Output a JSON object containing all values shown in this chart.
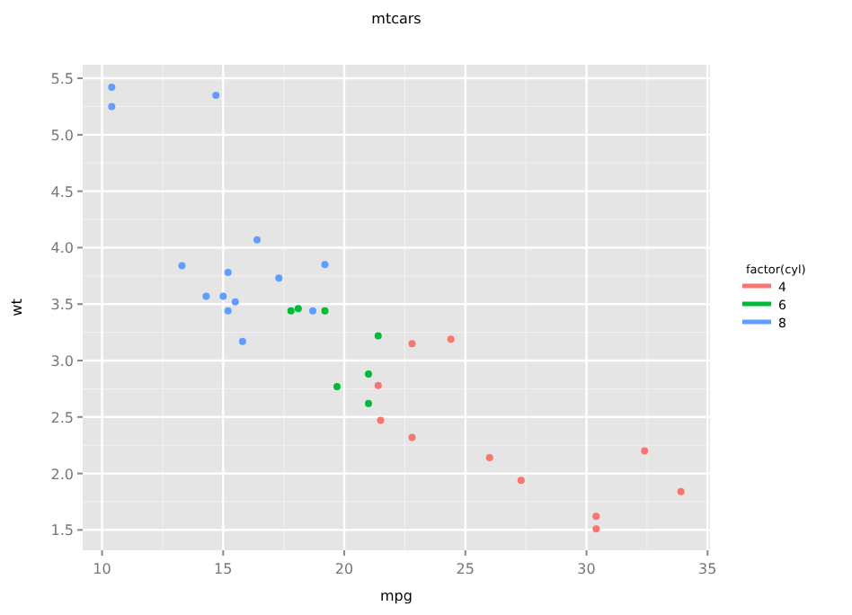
{
  "chart_data": {
    "type": "scatter",
    "title": "mtcars",
    "xlabel": "mpg",
    "ylabel": "wt",
    "legend_title": "factor(cyl)",
    "legend": "right",
    "grid": true,
    "marker": "circle",
    "xlim": [
      9.2,
      35.1
    ],
    "ylim": [
      1.32,
      5.62
    ],
    "xticks": [
      10,
      15,
      20,
      25,
      30,
      35
    ],
    "yticks": [
      {
        "value": 1.5,
        "label": "1.5"
      },
      {
        "value": 2,
        "label": "2.0"
      },
      {
        "value": 2.5,
        "label": "2.5"
      },
      {
        "value": 3,
        "label": "3.0"
      },
      {
        "value": 3.5,
        "label": "3.5"
      },
      {
        "value": 4,
        "label": "4.0"
      },
      {
        "value": 4.5,
        "label": "4.5"
      },
      {
        "value": 5,
        "label": "5.0"
      },
      {
        "value": 5.5,
        "label": "5.5"
      }
    ],
    "series": [
      {
        "name": "4",
        "color": "#f8766d",
        "x": [
          22.8,
          24.4,
          22.8,
          32.4,
          30.4,
          33.9,
          21.5,
          27.3,
          26,
          30.4,
          21.4
        ],
        "values": [
          2.32,
          3.19,
          3.15,
          2.2,
          1.62,
          1.84,
          2.47,
          1.94,
          2.14,
          1.51,
          2.78
        ]
      },
      {
        "name": "6",
        "color": "#00ba38",
        "x": [
          21,
          21,
          21.4,
          18.1,
          19.2,
          17.8,
          19.7
        ],
        "values": [
          2.62,
          2.88,
          3.22,
          3.46,
          3.44,
          3.44,
          2.77
        ]
      },
      {
        "name": "8",
        "color": "#619cff",
        "x": [
          18.7,
          14.3,
          16.4,
          17.3,
          15.2,
          10.4,
          10.4,
          14.7,
          15.5,
          15.2,
          13.3,
          19.2,
          15.8,
          15
        ],
        "values": [
          3.44,
          3.57,
          4.07,
          3.73,
          3.78,
          5.25,
          5.42,
          5.35,
          3.52,
          3.44,
          3.84,
          3.85,
          3.17,
          3.57
        ]
      }
    ]
  }
}
